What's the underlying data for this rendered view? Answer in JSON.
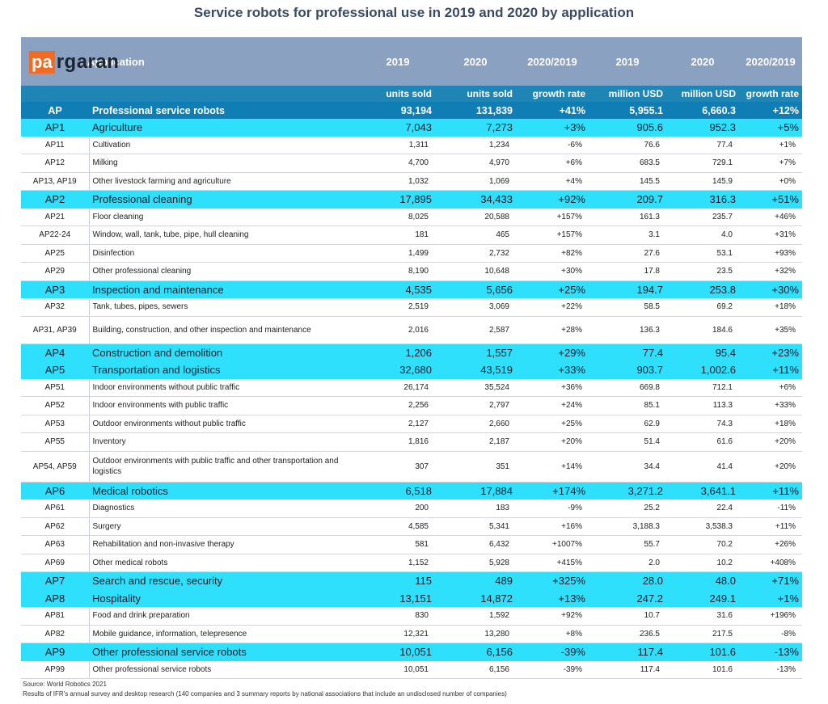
{
  "title": "Service robots for professional use in 2019 and 2020 by application",
  "logo": {
    "part1": "pa",
    "part2": "rgaran"
  },
  "header": {
    "application": "Application",
    "c2": "2019",
    "c3": "2020",
    "c4": "2020/2019",
    "c5": "2019",
    "c6": "2020",
    "c7": "2020/2019"
  },
  "units": {
    "c2": "units sold",
    "c3": "units sold",
    "c4": "growth rate",
    "c5": "million USD",
    "c6": "million USD",
    "c7": "growth rate"
  },
  "rows": [
    {
      "code": "AP",
      "name": "Professional service robots",
      "u2019": "93,194",
      "u2020": "131,839",
      "ug": "+41%",
      "m2019": "5,955.1",
      "m2020": "6,660.3",
      "mg": "+12%"
    },
    {
      "code": "AP1",
      "name": "Agriculture",
      "u2019": "7,043",
      "u2020": "7,273",
      "ug": "+3%",
      "m2019": "905.6",
      "m2020": "952.3",
      "mg": "+5%"
    },
    {
      "code": "AP11",
      "name": "Cultivation",
      "u2019": "1,311",
      "u2020": "1,234",
      "ug": "-6%",
      "m2019": "76.6",
      "m2020": "77.4",
      "mg": "+1%"
    },
    {
      "code": "AP12",
      "name": "Milking",
      "u2019": "4,700",
      "u2020": "4,970",
      "ug": "+6%",
      "m2019": "683.5",
      "m2020": "729.1",
      "mg": "+7%"
    },
    {
      "code": "AP13, AP19",
      "name": "Other livestock farming and agriculture",
      "u2019": "1,032",
      "u2020": "1,069",
      "ug": "+4%",
      "m2019": "145.5",
      "m2020": "145.9",
      "mg": "+0%"
    },
    {
      "code": "AP2",
      "name": "Professional cleaning",
      "u2019": "17,895",
      "u2020": "34,433",
      "ug": "+92%",
      "m2019": "209.7",
      "m2020": "316.3",
      "mg": "+51%"
    },
    {
      "code": "AP21",
      "name": "Floor cleaning",
      "u2019": "8,025",
      "u2020": "20,588",
      "ug": "+157%",
      "m2019": "161.3",
      "m2020": "235.7",
      "mg": "+46%"
    },
    {
      "code": "AP22-24",
      "name": "Window, wall, tank, tube, pipe, hull cleaning",
      "u2019": "181",
      "u2020": "465",
      "ug": "+157%",
      "m2019": "3.1",
      "m2020": "4.0",
      "mg": "+31%"
    },
    {
      "code": "AP25",
      "name": "Disinfection",
      "u2019": "1,499",
      "u2020": "2,732",
      "ug": "+82%",
      "m2019": "27.6",
      "m2020": "53.1",
      "mg": "+93%"
    },
    {
      "code": "AP29",
      "name": "Other professional cleaning",
      "u2019": "8,190",
      "u2020": "10,648",
      "ug": "+30%",
      "m2019": "17.8",
      "m2020": "23.5",
      "mg": "+32%"
    },
    {
      "code": "AP3",
      "name": "Inspection and maintenance",
      "u2019": "4,535",
      "u2020": "5,656",
      "ug": "+25%",
      "m2019": "194.7",
      "m2020": "253.8",
      "mg": "+30%"
    },
    {
      "code": "AP32",
      "name": "Tank, tubes, pipes, sewers",
      "u2019": "2,519",
      "u2020": "3,069",
      "ug": "+22%",
      "m2019": "58.5",
      "m2020": "69.2",
      "mg": "+18%"
    },
    {
      "code": "AP31, AP39",
      "name": "Building, construction, and other inspection and maintenance",
      "u2019": "2,016",
      "u2020": "2,587",
      "ug": "+28%",
      "m2019": "136.3",
      "m2020": "184.6",
      "mg": "+35%"
    },
    {
      "code": "AP4",
      "name": "Construction and demolition",
      "u2019": "1,206",
      "u2020": "1,557",
      "ug": "+29%",
      "m2019": "77.4",
      "m2020": "95.4",
      "mg": "+23%"
    },
    {
      "code": "AP5",
      "name": "Transportation and logistics",
      "u2019": "32,680",
      "u2020": "43,519",
      "ug": "+33%",
      "m2019": "903.7",
      "m2020": "1,002.6",
      "mg": "+11%"
    },
    {
      "code": "AP51",
      "name": "Indoor environments without public traffic",
      "u2019": "26,174",
      "u2020": "35,524",
      "ug": "+36%",
      "m2019": "669.8",
      "m2020": "712.1",
      "mg": "+6%"
    },
    {
      "code": "AP52",
      "name": "Indoor environments with public traffic",
      "u2019": "2,256",
      "u2020": "2,797",
      "ug": "+24%",
      "m2019": "85.1",
      "m2020": "113.3",
      "mg": "+33%"
    },
    {
      "code": "AP53",
      "name": "Outdoor environments without public traffic",
      "u2019": "2,127",
      "u2020": "2,660",
      "ug": "+25%",
      "m2019": "62.9",
      "m2020": "74.3",
      "mg": "+18%"
    },
    {
      "code": "AP55",
      "name": "Inventory",
      "u2019": "1,816",
      "u2020": "2,187",
      "ug": "+20%",
      "m2019": "51.4",
      "m2020": "61.6",
      "mg": "+20%"
    },
    {
      "code": "AP54, AP59",
      "name": "Outdoor environments with public traffic and other transportation and logistics",
      "u2019": "307",
      "u2020": "351",
      "ug": "+14%",
      "m2019": "34.4",
      "m2020": "41.4",
      "mg": "+20%"
    },
    {
      "code": "AP6",
      "name": "Medical robotics",
      "u2019": "6,518",
      "u2020": "17,884",
      "ug": "+174%",
      "m2019": "3,271.2",
      "m2020": "3,641.1",
      "mg": "+11%"
    },
    {
      "code": "AP61",
      "name": "Diagnostics",
      "u2019": "200",
      "u2020": "183",
      "ug": "-9%",
      "m2019": "25.2",
      "m2020": "22.4",
      "mg": "-11%"
    },
    {
      "code": "AP62",
      "name": "Surgery",
      "u2019": "4,585",
      "u2020": "5,341",
      "ug": "+16%",
      "m2019": "3,188.3",
      "m2020": "3,538.3",
      "mg": "+11%"
    },
    {
      "code": "AP63",
      "name": "Rehabilitation and non-invasive therapy",
      "u2019": "581",
      "u2020": "6,432",
      "ug": "+1007%",
      "m2019": "55.7",
      "m2020": "70.2",
      "mg": "+26%"
    },
    {
      "code": "AP69",
      "name": "Other medical robots",
      "u2019": "1,152",
      "u2020": "5,928",
      "ug": "+415%",
      "m2019": "2.0",
      "m2020": "10.2",
      "mg": "+408%"
    },
    {
      "code": "AP7",
      "name": "Search and rescue, security",
      "u2019": "115",
      "u2020": "489",
      "ug": "+325%",
      "m2019": "28.0",
      "m2020": "48.0",
      "mg": "+71%"
    },
    {
      "code": "AP8",
      "name": "Hospitality",
      "u2019": "13,151",
      "u2020": "14,872",
      "ug": "+13%",
      "m2019": "247.2",
      "m2020": "249.1",
      "mg": "+1%"
    },
    {
      "code": "AP81",
      "name": "Food and drink preparation",
      "u2019": "830",
      "u2020": "1,592",
      "ug": "+92%",
      "m2019": "10.7",
      "m2020": "31.6",
      "mg": "+196%"
    },
    {
      "code": "AP82",
      "name": "Mobile guidance, information, telepresence",
      "u2019": "12,321",
      "u2020": "13,280",
      "ug": "+8%",
      "m2019": "236.5",
      "m2020": "217.5",
      "mg": "-8%"
    },
    {
      "code": "AP9",
      "name": "Other professional service robots",
      "u2019": "10,051",
      "u2020": "6,156",
      "ug": "-39%",
      "m2019": "117.4",
      "m2020": "101.6",
      "mg": "-13%"
    },
    {
      "code": "AP99",
      "name": "Other professional service robots",
      "u2019": "10,051",
      "u2020": "6,156",
      "ug": "-39%",
      "m2019": "117.4",
      "m2020": "101.6",
      "mg": "-13%"
    }
  ],
  "source": {
    "line1": "Source: World Robotics 2021",
    "line2": "Results of IFR's annual survey and desktop research (140 companies and 3 summary reports by national associations that include an undisclosed number of companies)"
  }
}
